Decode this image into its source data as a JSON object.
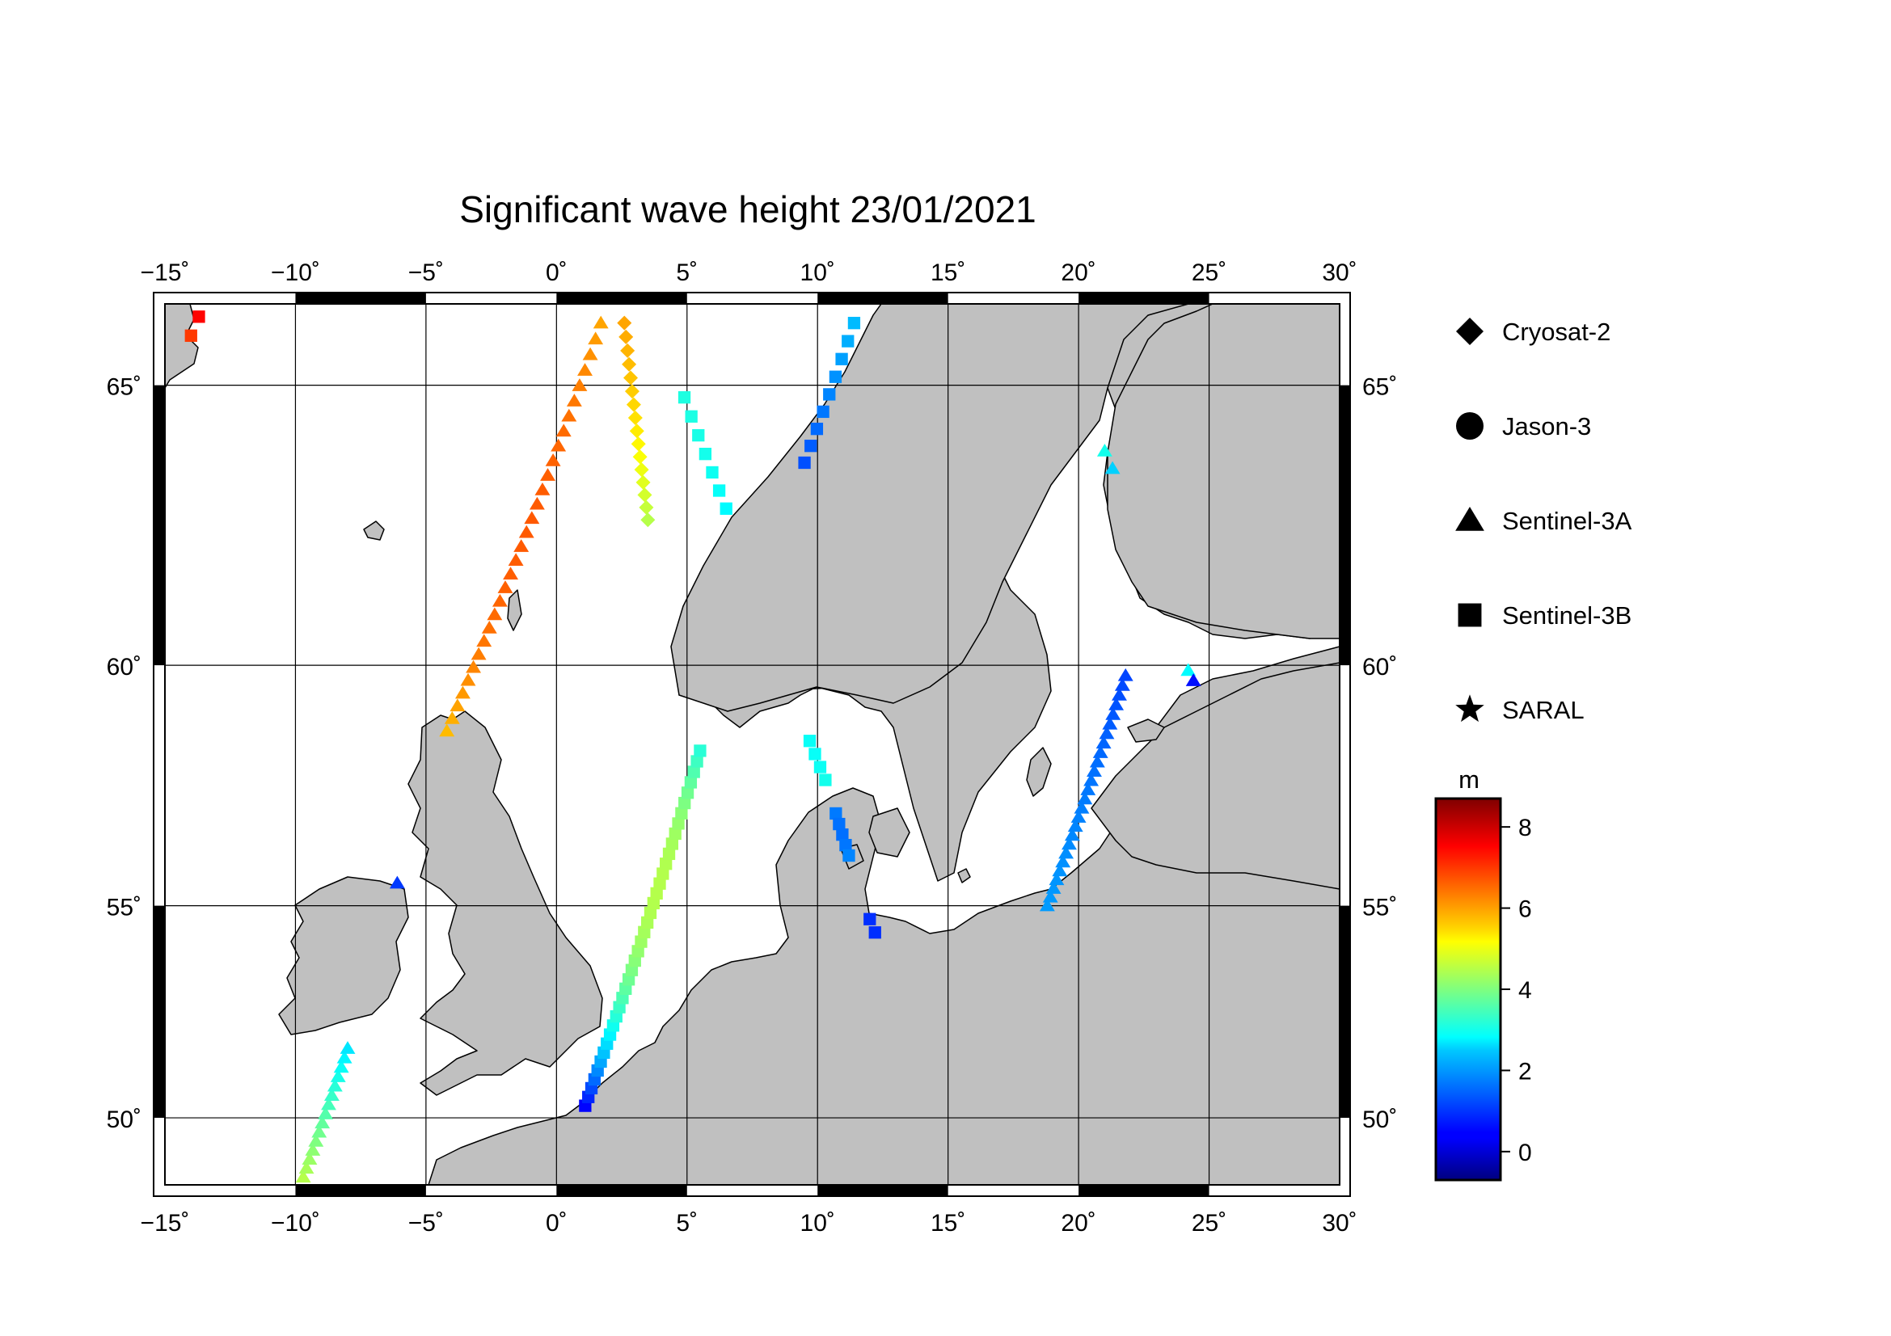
{
  "title": "Significant wave height 23/01/2021",
  "map": {
    "lon_range": [
      -15,
      30
    ],
    "lat_range": [
      48.3,
      66.3
    ],
    "lon_ticks": [
      -15,
      -10,
      -5,
      0,
      5,
      10,
      15,
      20,
      25,
      30
    ],
    "lat_ticks": [
      50,
      55,
      60,
      65
    ],
    "lon_tick_labels": [
      "−15˚",
      "−10˚",
      "−5˚",
      "0˚",
      "5˚",
      "10˚",
      "15˚",
      "20˚",
      "25˚",
      "30˚"
    ],
    "lat_tick_labels": [
      "50˚",
      "55˚",
      "60˚",
      "65˚"
    ],
    "land_color": "#c0c0c0",
    "sea_color": "#ffffff",
    "grid": true
  },
  "legend": {
    "items": [
      {
        "label": "Cryosat-2",
        "symbol": "diamond-icon"
      },
      {
        "label": "Jason-3",
        "symbol": "circle-icon"
      },
      {
        "label": "Sentinel-3A",
        "symbol": "triangle-icon"
      },
      {
        "label": "Sentinel-3B",
        "symbol": "square-icon"
      },
      {
        "label": "SARAL",
        "symbol": "star-icon"
      }
    ]
  },
  "colorbar": {
    "unit": "m",
    "min": -0.7,
    "max": 8.7,
    "ticks": [
      0,
      2,
      4,
      6,
      8
    ],
    "tick_labels": [
      "0",
      "2",
      "4",
      "6",
      "8"
    ],
    "colormap": "jet"
  },
  "chart_data": {
    "type": "scatter",
    "title": "Significant wave height 23/01/2021",
    "x_unit": "longitude (degrees)",
    "y_unit": "latitude (degrees)",
    "value_unit": "m",
    "tracks": [
      {
        "satellite": "Sentinel-3A",
        "start": [
          -4.2,
          58.7
        ],
        "end": [
          1.7,
          66.0
        ],
        "n": 30,
        "values_start": 5.8,
        "values_end": 6.0,
        "values_mid": 6.7
      },
      {
        "satellite": "Cryosat-2",
        "start": [
          2.6,
          66.0
        ],
        "end": [
          3.5,
          62.7
        ],
        "n": 16,
        "values_start": 6.0,
        "values_end": 4.5,
        "values_mid": 5.4
      },
      {
        "satellite": "Sentinel-3B",
        "start": [
          4.9,
          64.8
        ],
        "end": [
          6.5,
          62.9
        ],
        "n": 7,
        "values_start": 3.1,
        "values_end": 2.8,
        "values_mid": 3.0
      },
      {
        "satellite": "Sentinel-3B",
        "start": [
          9.5,
          63.7
        ],
        "end": [
          11.4,
          66.0
        ],
        "n": 9,
        "values_start": 1.2,
        "values_end": 2.2,
        "values_mid": 1.7
      },
      {
        "satellite": "Sentinel-3B",
        "start": [
          1.1,
          50.3
        ],
        "end": [
          5.5,
          58.3
        ],
        "n": 38,
        "values_start": 0.5,
        "values_end": 3.2,
        "values_mid": 4.3
      },
      {
        "satellite": "Sentinel-3B",
        "start": [
          9.7,
          58.5
        ],
        "end": [
          10.3,
          57.7
        ],
        "n": 4,
        "values_start": 2.9,
        "values_end": 3.0,
        "values_mid": 2.9
      },
      {
        "satellite": "Sentinel-3B",
        "start": [
          10.7,
          57.0
        ],
        "end": [
          11.2,
          56.1
        ],
        "n": 5,
        "values_start": 1.6,
        "values_end": 1.7,
        "values_mid": 1.5
      },
      {
        "satellite": "Sentinel-3B",
        "start": [
          12.0,
          54.7
        ],
        "end": [
          12.2,
          54.4
        ],
        "n": 2,
        "values_start": 0.9,
        "values_end": 0.9,
        "values_mid": 0.9
      },
      {
        "satellite": "Sentinel-3A",
        "start": [
          -9.7,
          48.5
        ],
        "end": [
          -8.0,
          51.7
        ],
        "n": 15,
        "values_start": 4.5,
        "values_end": 2.6,
        "values_mid": 3.6
      },
      {
        "satellite": "Sentinel-3A",
        "start": [
          -6.1,
          55.5
        ],
        "end": [
          -6.1,
          55.5
        ],
        "n": 1,
        "values_start": 1.0,
        "values_end": 1.0,
        "values_mid": 1.0
      },
      {
        "satellite": "Sentinel-3A",
        "start": [
          18.8,
          55.0
        ],
        "end": [
          21.8,
          59.8
        ],
        "n": 26,
        "values_start": 1.9,
        "values_end": 1.1,
        "values_mid": 1.6
      },
      {
        "satellite": "Sentinel-3A",
        "start": [
          21.0,
          63.9
        ],
        "end": [
          21.3,
          63.6
        ],
        "n": 2,
        "values_start": 3.0,
        "values_end": 2.4,
        "values_mid": 2.7
      },
      {
        "satellite": "Sentinel-3A",
        "start": [
          24.2,
          59.9
        ],
        "end": [
          24.4,
          59.7
        ],
        "n": 2,
        "values_start": 2.8,
        "values_end": 0.6,
        "values_mid": 1.7
      },
      {
        "satellite": "Sentinel-3B",
        "start": [
          -14.0,
          65.8
        ],
        "end": [
          -13.7,
          66.1
        ],
        "n": 2,
        "values_start": 7.0,
        "values_end": 7.5,
        "values_mid": 7.2
      }
    ]
  }
}
